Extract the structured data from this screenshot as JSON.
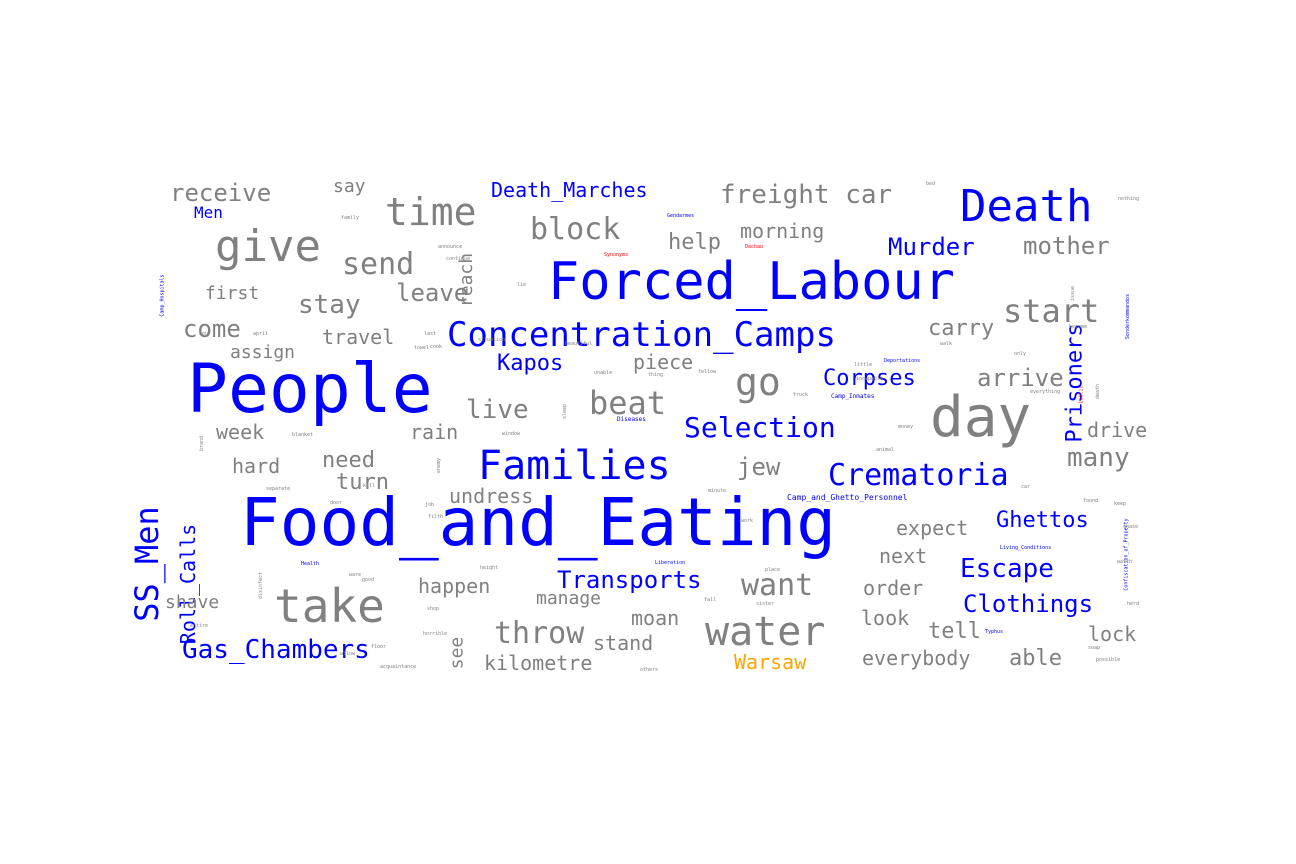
{
  "colors": {
    "topic": "#0000ff",
    "word": "#808080",
    "place": "#ffa500",
    "highlight": "#ff0000"
  },
  "words": [
    {
      "text": "Food_and_Eating",
      "kind": "topic"
    },
    {
      "text": "People",
      "kind": "topic"
    },
    {
      "text": "Forced_Labour",
      "kind": "topic"
    },
    {
      "text": "day",
      "kind": "word"
    },
    {
      "text": "Death",
      "kind": "topic"
    },
    {
      "text": "Concentration_Camps",
      "kind": "topic"
    },
    {
      "text": "Families",
      "kind": "topic"
    },
    {
      "text": "take",
      "kind": "word"
    },
    {
      "text": "water",
      "kind": "word"
    },
    {
      "text": "give",
      "kind": "word"
    },
    {
      "text": "time",
      "kind": "word"
    },
    {
      "text": "go",
      "kind": "word"
    },
    {
      "text": "Crematoria",
      "kind": "topic"
    },
    {
      "text": "SS_Men",
      "kind": "topic"
    },
    {
      "text": "beat",
      "kind": "word"
    },
    {
      "text": "start",
      "kind": "word"
    },
    {
      "text": "block",
      "kind": "word"
    },
    {
      "text": "send",
      "kind": "word"
    },
    {
      "text": "Selection",
      "kind": "topic"
    },
    {
      "text": "want",
      "kind": "word"
    },
    {
      "text": "Murder",
      "kind": "topic"
    },
    {
      "text": "Prisoners",
      "kind": "topic"
    },
    {
      "text": "freight car",
      "kind": "word"
    },
    {
      "text": "Gas_Chambers",
      "kind": "topic"
    },
    {
      "text": "throw",
      "kind": "word"
    },
    {
      "text": "Transports",
      "kind": "topic"
    },
    {
      "text": "live",
      "kind": "word"
    },
    {
      "text": "stay",
      "kind": "word"
    },
    {
      "text": "Escape",
      "kind": "topic"
    },
    {
      "text": "Clothings",
      "kind": "topic"
    },
    {
      "text": "many",
      "kind": "word"
    },
    {
      "text": "Corpses",
      "kind": "topic"
    },
    {
      "text": "mother",
      "kind": "word"
    },
    {
      "text": "arrive",
      "kind": "word"
    },
    {
      "text": "Ghettos",
      "kind": "topic"
    },
    {
      "text": "receive",
      "kind": "word"
    },
    {
      "text": "Kapos",
      "kind": "topic"
    },
    {
      "text": "Death_Marches",
      "kind": "topic"
    },
    {
      "text": "leave",
      "kind": "word"
    },
    {
      "text": "come",
      "kind": "word"
    },
    {
      "text": "jew",
      "kind": "word"
    },
    {
      "text": "need",
      "kind": "word"
    },
    {
      "text": "help",
      "kind": "word"
    },
    {
      "text": "carry",
      "kind": "word"
    },
    {
      "text": "turn",
      "kind": "word"
    },
    {
      "text": "tell",
      "kind": "word"
    },
    {
      "text": "Roll_Calls",
      "kind": "topic"
    },
    {
      "text": "drive",
      "kind": "word"
    },
    {
      "text": "able",
      "kind": "word"
    },
    {
      "text": "Warsaw",
      "kind": "place"
    },
    {
      "text": "reach",
      "kind": "word"
    },
    {
      "text": "rain",
      "kind": "word"
    },
    {
      "text": "hard",
      "kind": "word"
    },
    {
      "text": "week",
      "kind": "word"
    },
    {
      "text": "moan",
      "kind": "word"
    },
    {
      "text": "lock",
      "kind": "word"
    },
    {
      "text": "morning",
      "kind": "word"
    },
    {
      "text": "undress",
      "kind": "word"
    },
    {
      "text": "happen",
      "kind": "word"
    },
    {
      "text": "stand",
      "kind": "word"
    },
    {
      "text": "kilometre",
      "kind": "word"
    },
    {
      "text": "expect",
      "kind": "word"
    },
    {
      "text": "everybody",
      "kind": "word"
    },
    {
      "text": "first",
      "kind": "word"
    },
    {
      "text": "travel",
      "kind": "word"
    },
    {
      "text": "piece",
      "kind": "word"
    },
    {
      "text": "assign",
      "kind": "word"
    },
    {
      "text": "look",
      "kind": "word"
    },
    {
      "text": "order",
      "kind": "word"
    },
    {
      "text": "manage",
      "kind": "word"
    },
    {
      "text": "next",
      "kind": "word"
    },
    {
      "text": "shave",
      "kind": "word"
    },
    {
      "text": "say",
      "kind": "word"
    },
    {
      "text": "see",
      "kind": "word"
    },
    {
      "text": "Men",
      "kind": "topic"
    },
    {
      "text": "Diseases",
      "kind": "topic"
    },
    {
      "text": "Camp_Inmates",
      "kind": "topic"
    },
    {
      "text": "Camp_and_Ghetto_Personnel",
      "kind": "topic"
    },
    {
      "text": "Deportations",
      "kind": "topic"
    },
    {
      "text": "Confiscation_of_Property",
      "kind": "topic"
    },
    {
      "text": "Living_Conditions",
      "kind": "topic"
    },
    {
      "text": "Camp_Hospitals",
      "kind": "topic"
    },
    {
      "text": "Sonderkommandos",
      "kind": "topic"
    },
    {
      "text": "Liberation",
      "kind": "topic"
    },
    {
      "text": "Health",
      "kind": "topic"
    },
    {
      "text": "Typhus",
      "kind": "topic"
    },
    {
      "text": "Gendarmes",
      "kind": "topic"
    },
    {
      "text": "Lublin",
      "kind": "highlight"
    },
    {
      "text": "Dachau",
      "kind": "highlight"
    },
    {
      "text": "Synonyms",
      "kind": "highlight"
    },
    {
      "text": "family",
      "kind": "word"
    },
    {
      "text": "announce",
      "kind": "word"
    },
    {
      "text": "continue",
      "kind": "word"
    },
    {
      "text": "situation",
      "kind": "word"
    },
    {
      "text": "beautiful",
      "kind": "word"
    },
    {
      "text": "become",
      "kind": "word"
    },
    {
      "text": "nothing",
      "kind": "word"
    },
    {
      "text": "bed",
      "kind": "word"
    },
    {
      "text": "hour",
      "kind": "word"
    },
    {
      "text": "april",
      "kind": "word"
    },
    {
      "text": "last",
      "kind": "word"
    },
    {
      "text": "towel",
      "kind": "word"
    },
    {
      "text": "walk",
      "kind": "word"
    },
    {
      "text": "little",
      "kind": "word"
    },
    {
      "text": "incapable",
      "kind": "word"
    },
    {
      "text": "everything",
      "kind": "word"
    },
    {
      "text": "death",
      "kind": "word"
    },
    {
      "text": "issue",
      "kind": "word"
    },
    {
      "text": "window",
      "kind": "word"
    },
    {
      "text": "blanket",
      "kind": "word"
    },
    {
      "text": "animal",
      "kind": "word"
    },
    {
      "text": "money",
      "kind": "word"
    },
    {
      "text": "separate",
      "kind": "word"
    },
    {
      "text": "minute",
      "kind": "word"
    },
    {
      "text": "door",
      "kind": "word"
    },
    {
      "text": "job",
      "kind": "word"
    },
    {
      "text": "filth",
      "kind": "word"
    },
    {
      "text": "found",
      "kind": "word"
    },
    {
      "text": "keep",
      "kind": "word"
    },
    {
      "text": "chase",
      "kind": "word"
    },
    {
      "text": "watch",
      "kind": "word"
    },
    {
      "text": "herd",
      "kind": "word"
    },
    {
      "text": "height",
      "kind": "word"
    },
    {
      "text": "place",
      "kind": "word"
    },
    {
      "text": "good",
      "kind": "word"
    },
    {
      "text": "horrible",
      "kind": "word"
    },
    {
      "text": "floor",
      "kind": "word"
    },
    {
      "text": "allow",
      "kind": "word"
    },
    {
      "text": "entire",
      "kind": "word"
    },
    {
      "text": "acquaintance",
      "kind": "word"
    },
    {
      "text": "others",
      "kind": "word"
    },
    {
      "text": "possible",
      "kind": "word"
    },
    {
      "text": "soap",
      "kind": "word"
    },
    {
      "text": "only",
      "kind": "word"
    },
    {
      "text": "lie",
      "kind": "word"
    },
    {
      "text": "cook",
      "kind": "word"
    },
    {
      "text": "truck",
      "kind": "word"
    },
    {
      "text": "thing",
      "kind": "word"
    },
    {
      "text": "fellow",
      "kind": "word"
    },
    {
      "text": "sister",
      "kind": "word"
    },
    {
      "text": "enemy",
      "kind": "word"
    },
    {
      "text": "kill",
      "kind": "word"
    },
    {
      "text": "unable",
      "kind": "word"
    },
    {
      "text": "ware",
      "kind": "word"
    },
    {
      "text": "fall",
      "kind": "word"
    },
    {
      "text": "car",
      "kind": "word"
    },
    {
      "text": "work",
      "kind": "word"
    },
    {
      "text": "sleep",
      "kind": "word"
    },
    {
      "text": "disinfect",
      "kind": "word"
    },
    {
      "text": "brand",
      "kind": "word"
    },
    {
      "text": "shop",
      "kind": "word"
    },
    {
      "text": "know",
      "kind": "word"
    }
  ]
}
